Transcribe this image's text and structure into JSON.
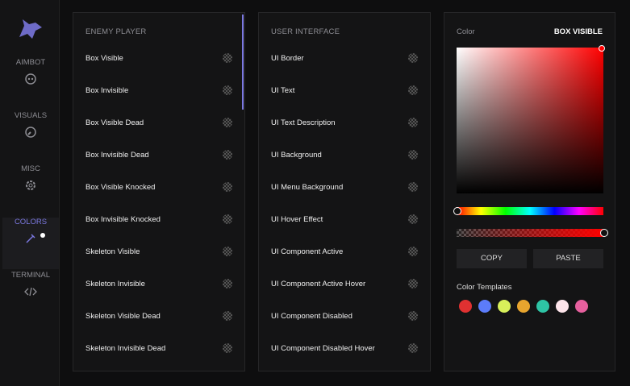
{
  "sidebar": {
    "items": [
      {
        "label": "AIMBOT",
        "active": false
      },
      {
        "label": "VISUALS",
        "active": false
      },
      {
        "label": "MISC",
        "active": false
      },
      {
        "label": "COLORS",
        "active": true
      },
      {
        "label": "TERMINAL",
        "active": false
      }
    ]
  },
  "panels": [
    {
      "title": "ENEMY PLAYER",
      "rows": [
        {
          "label": "Box Visible",
          "swatch": "#e8141c"
        },
        {
          "label": "Box Invisible",
          "swatch": "#ffffff"
        },
        {
          "label": "Box Visible Dead",
          "swatch": "#e8141c"
        },
        {
          "label": "Box Invisible Dead",
          "swatch": "#ffffff"
        },
        {
          "label": "Box Visible Knocked",
          "swatch": "#e8141c"
        },
        {
          "label": "Box Invisible Knocked",
          "swatch": "#ffffff"
        },
        {
          "label": "Skeleton Visible",
          "swatch": "#e8141c"
        },
        {
          "label": "Skeleton Invisible",
          "swatch": "#ffffff"
        },
        {
          "label": "Skeleton Visible Dead",
          "swatch": "#e8141c"
        },
        {
          "label": "Skeleton Invisible Dead",
          "swatch": "#ffffff"
        }
      ]
    },
    {
      "title": "USER INTERFACE",
      "rows": [
        {
          "label": "UI Border",
          "swatch": "rgba(40,40,40,0.9)"
        },
        {
          "label": "UI Text",
          "swatch": "#ffffff"
        },
        {
          "label": "UI Text Description",
          "swatch": "rgba(150,150,150,0.6)"
        },
        {
          "label": "UI Background",
          "swatch": "rgba(60,60,60,0.3)"
        },
        {
          "label": "UI Menu Background",
          "swatch": "rgba(20,20,20,0.2)"
        },
        {
          "label": "UI Hover Effect",
          "swatch": "rgba(90,90,90,0.4)"
        },
        {
          "label": "UI Component Active",
          "swatch": "#7b78e0"
        },
        {
          "label": "UI Component Active Hover",
          "swatch": "#5a58a8"
        },
        {
          "label": "UI Component Disabled",
          "swatch": "rgba(120,120,120,0.6)"
        },
        {
          "label": "UI Component Disabled Hover",
          "swatch": "#9a9a9a"
        }
      ]
    }
  ],
  "picker": {
    "label": "Color",
    "target": "BOX VISIBLE",
    "copy": "COPY",
    "paste": "PASTE",
    "templates_title": "Color Templates",
    "templates": [
      "#e03131",
      "#5c7cfa",
      "#d8f05a",
      "#e8a52e",
      "#2ec4a5",
      "#fde4ea",
      "#e6609e"
    ]
  }
}
